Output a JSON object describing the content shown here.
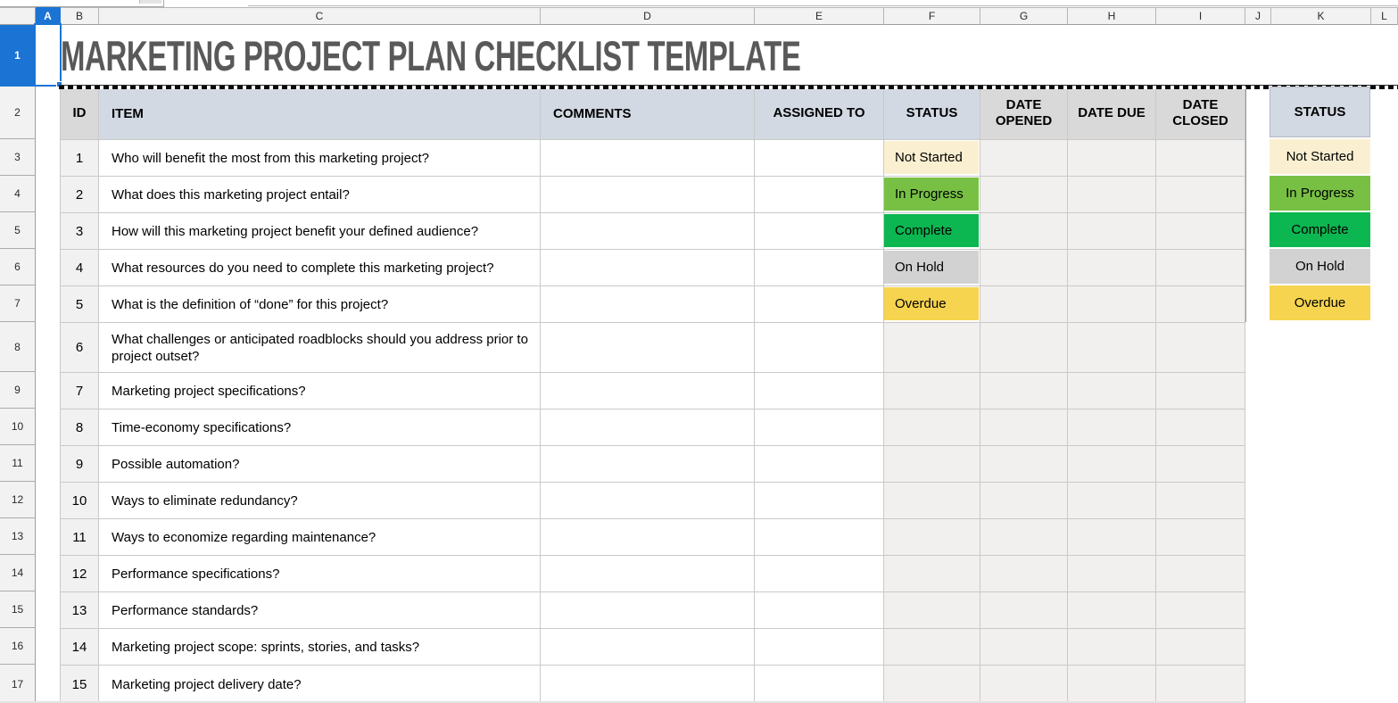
{
  "grid": {
    "column_headers": [
      "A",
      "B",
      "C",
      "D",
      "E",
      "F",
      "G",
      "H",
      "I",
      "J",
      "K",
      "L"
    ],
    "row_headers": [
      "1",
      "2",
      "3",
      "4",
      "5",
      "6",
      "7",
      "8",
      "9",
      "10",
      "11",
      "12",
      "13",
      "14",
      "15",
      "16",
      "17"
    ],
    "selected_column": "A",
    "selected_row": "1"
  },
  "title": "MARKETING PROJECT PLAN CHECKLIST TEMPLATE",
  "table": {
    "headers": {
      "id": "ID",
      "item": "ITEM",
      "comments": "COMMENTS",
      "assigned_to": "ASSIGNED TO",
      "status": "STATUS",
      "date_opened": "DATE OPENED",
      "date_due": "DATE DUE",
      "date_closed": "DATE CLOSED"
    },
    "rows": [
      {
        "id": "1",
        "item": "Who will benefit the most from this marketing project?",
        "comments": "",
        "assigned_to": "",
        "status": "Not Started",
        "date_opened": "",
        "date_due": "",
        "date_closed": ""
      },
      {
        "id": "2",
        "item": "What does this marketing project entail?",
        "comments": "",
        "assigned_to": "",
        "status": "In Progress",
        "date_opened": "",
        "date_due": "",
        "date_closed": ""
      },
      {
        "id": "3",
        "item": "How will this marketing project benefit your defined audience?",
        "comments": "",
        "assigned_to": "",
        "status": "Complete",
        "date_opened": "",
        "date_due": "",
        "date_closed": ""
      },
      {
        "id": "4",
        "item": "What resources do you need to complete this marketing project?",
        "comments": "",
        "assigned_to": "",
        "status": "On Hold",
        "date_opened": "",
        "date_due": "",
        "date_closed": ""
      },
      {
        "id": "5",
        "item": "What is the definition of “done” for this project?",
        "comments": "",
        "assigned_to": "",
        "status": "Overdue",
        "date_opened": "",
        "date_due": "",
        "date_closed": ""
      },
      {
        "id": "6",
        "item": "What challenges or anticipated roadblocks should you address prior to project outset?",
        "comments": "",
        "assigned_to": "",
        "date_opened": "",
        "date_due": "",
        "date_closed": ""
      },
      {
        "id": "7",
        "item": "Marketing project specifications?",
        "comments": "",
        "assigned_to": "",
        "date_opened": "",
        "date_due": "",
        "date_closed": ""
      },
      {
        "id": "8",
        "item": "Time-economy specifications?",
        "comments": "",
        "assigned_to": "",
        "date_opened": "",
        "date_due": "",
        "date_closed": ""
      },
      {
        "id": "9",
        "item": "Possible automation?",
        "comments": "",
        "assigned_to": "",
        "date_opened": "",
        "date_due": "",
        "date_closed": ""
      },
      {
        "id": "10",
        "item": "Ways to eliminate redundancy?",
        "comments": "",
        "assigned_to": "",
        "date_opened": "",
        "date_due": "",
        "date_closed": ""
      },
      {
        "id": "11",
        "item": "Ways to economize regarding maintenance?",
        "comments": "",
        "assigned_to": "",
        "date_opened": "",
        "date_due": "",
        "date_closed": ""
      },
      {
        "id": "12",
        "item": "Performance specifications?",
        "comments": "",
        "assigned_to": "",
        "date_opened": "",
        "date_due": "",
        "date_closed": ""
      },
      {
        "id": "13",
        "item": "Performance standards?",
        "comments": "",
        "assigned_to": "",
        "date_opened": "",
        "date_due": "",
        "date_closed": ""
      },
      {
        "id": "14",
        "item": "Marketing project scope: sprints, stories, and tasks?",
        "comments": "",
        "assigned_to": "",
        "date_opened": "",
        "date_due": "",
        "date_closed": ""
      },
      {
        "id": "15",
        "item": "Marketing project delivery date?",
        "comments": "",
        "assigned_to": "",
        "date_opened": "",
        "date_due": "",
        "date_closed": ""
      }
    ]
  },
  "legend": {
    "header": "STATUS",
    "items": [
      {
        "label": "Not Started",
        "color": "#FAF0D1"
      },
      {
        "label": "In Progress",
        "color": "#77C044"
      },
      {
        "label": "Complete",
        "color": "#0CB651"
      },
      {
        "label": "On Hold",
        "color": "#D2D2D2"
      },
      {
        "label": "Overdue",
        "color": "#F6D44F"
      }
    ]
  },
  "colors": {
    "header_fill_blue": "#D2D9E3",
    "header_fill_gray": "#D9D9D9",
    "id_cell_fill": "#F1F1F1",
    "date_cell_fill": "#F1F0EE",
    "selection_blue": "#1B74D4",
    "title_text": "#595959"
  }
}
